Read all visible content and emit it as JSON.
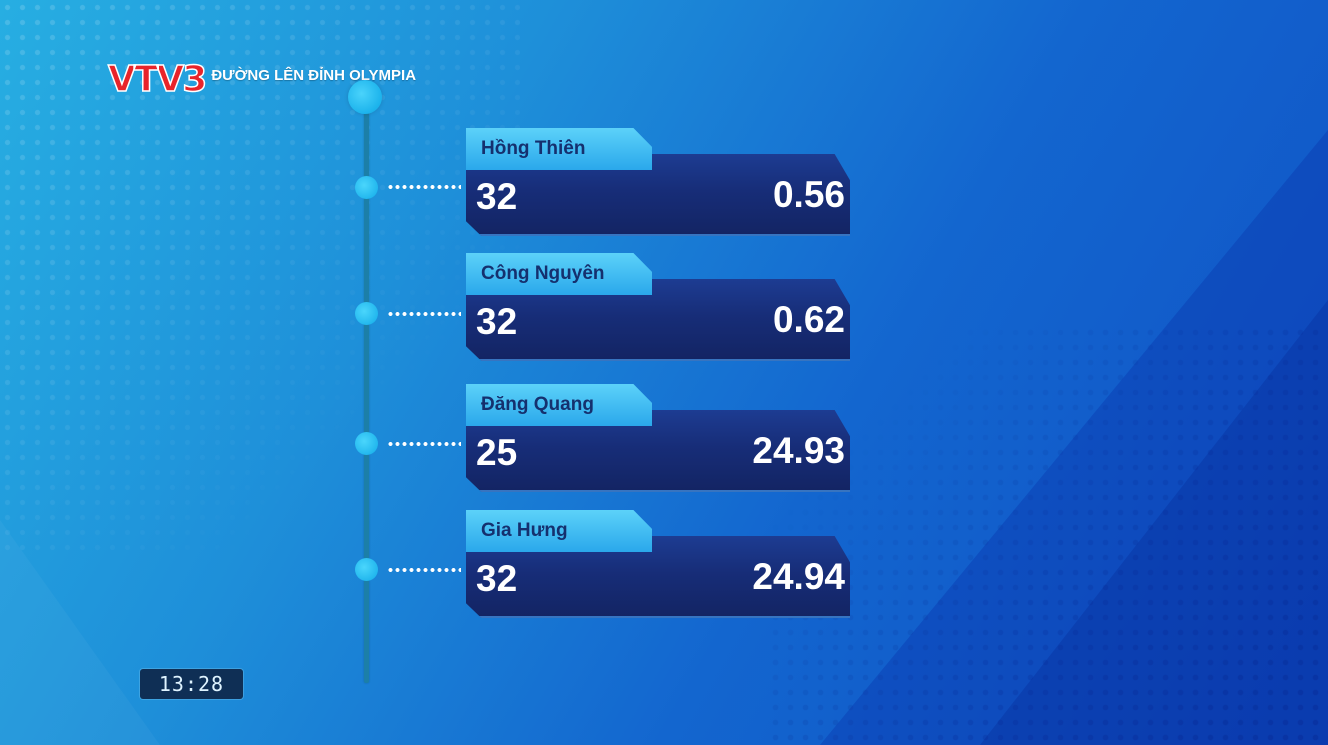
{
  "logo": {
    "channel_prefix": "VTV",
    "channel_number": "3",
    "program_title": "ĐƯỜNG LÊN ĐỈNH OLYMPIA"
  },
  "contestants": [
    {
      "name": "Hồng Thiên",
      "score": "32",
      "time": "0.56"
    },
    {
      "name": "Công Nguyên",
      "score": "32",
      "time": "0.62"
    },
    {
      "name": "Đăng Quang",
      "score": "25",
      "time": "24.93"
    },
    {
      "name": "Gia Hưng",
      "score": "32",
      "time": "24.94"
    }
  ],
  "clock": "13:28",
  "colors": {
    "card_body": "#172d78",
    "card_tab": "#3cbdf2",
    "accent_red": "#e8242a",
    "timeline": "#1c7fa8"
  }
}
